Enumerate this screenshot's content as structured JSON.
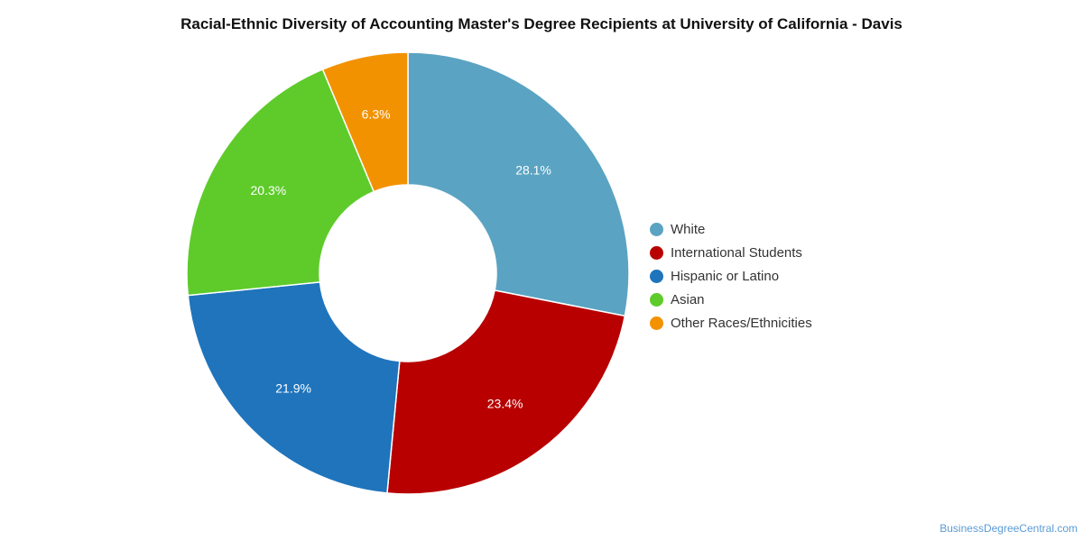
{
  "chart_data": {
    "type": "pie",
    "title": "Racial-Ethnic Diversity of Accounting Master's Degree Recipients at University of California - Davis",
    "legend_position": "right",
    "series": [
      {
        "name": "White",
        "value": 28.1,
        "label": "28.1%",
        "color": "#5ba3c2"
      },
      {
        "name": "International Students",
        "value": 23.4,
        "label": "23.4%",
        "color": "#b80000"
      },
      {
        "name": "Hispanic or Latino",
        "value": 21.9,
        "label": "21.9%",
        "color": "#1f74bc"
      },
      {
        "name": "Asian",
        "value": 20.3,
        "label": "20.3%",
        "color": "#5ecb2a"
      },
      {
        "name": "Other Races/Ethnicities",
        "value": 6.3,
        "label": "6.3%",
        "color": "#f39200"
      }
    ]
  },
  "footer": {
    "source": "BusinessDegreeCentral.com"
  }
}
